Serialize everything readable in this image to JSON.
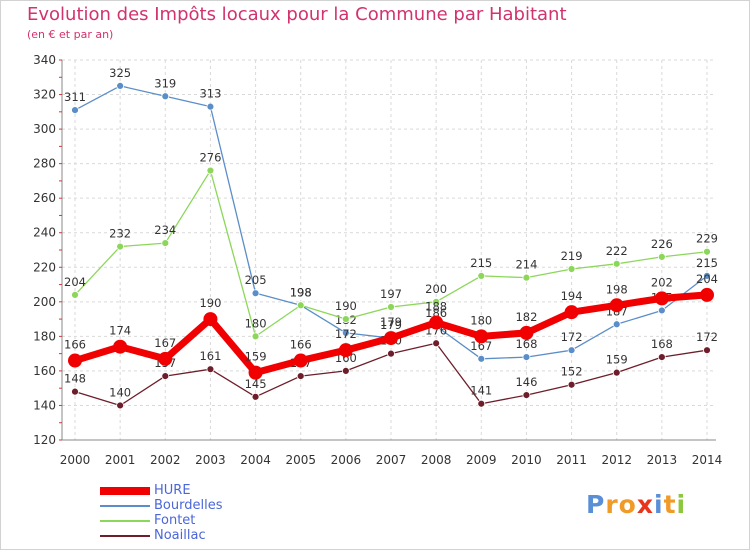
{
  "chart_data": {
    "type": "line",
    "title": "Evolution des Impôts locaux pour la Commune par Habitant",
    "subtitle": "(en € et par an)",
    "xlabel": "",
    "ylabel": "",
    "ylim": [
      120,
      340
    ],
    "yticks": [
      120,
      140,
      160,
      180,
      200,
      220,
      240,
      260,
      280,
      300,
      320,
      340
    ],
    "grid": true,
    "legend_position": "bottom-left",
    "x": [
      "2000",
      "2001",
      "2002",
      "2003",
      "2004",
      "2005",
      "2006",
      "2007",
      "2008",
      "2009",
      "2010",
      "2011",
      "2012",
      "2013",
      "2014"
    ],
    "series": [
      {
        "name": "Bourdelles",
        "color": "#5b8ec8",
        "values": [
          311,
          325,
          319,
          313,
          205,
          198,
          182,
          179,
          186,
          167,
          168,
          172,
          187,
          195,
          215
        ]
      },
      {
        "name": "Fontet",
        "color": "#8cd75a",
        "values": [
          204,
          232,
          234,
          276,
          180,
          198,
          190,
          197,
          200,
          215,
          214,
          219,
          222,
          226,
          229
        ]
      },
      {
        "name": "Noaillac",
        "color": "#6e1e2a",
        "values": [
          148,
          140,
          157,
          161,
          145,
          157,
          160,
          170,
          176,
          141,
          146,
          152,
          159,
          168,
          172
        ]
      },
      {
        "name": "HURE",
        "color": "#f00000",
        "values": [
          166,
          174,
          167,
          190,
          159,
          166,
          172,
          179,
          188,
          180,
          182,
          194,
          198,
          202,
          204
        ]
      }
    ],
    "legend_order": [
      "HURE",
      "Bourdelles",
      "Fontet",
      "Noaillac"
    ]
  },
  "logo": {
    "text": "Proxiti",
    "letters": [
      "P",
      "r",
      "o",
      "x",
      "i",
      "t",
      "i"
    ],
    "colors": [
      "#5a8fd8",
      "#f09a28",
      "#f09a28",
      "#e8341c",
      "#5a8fd8",
      "#f09a28",
      "#8cc83c"
    ]
  }
}
